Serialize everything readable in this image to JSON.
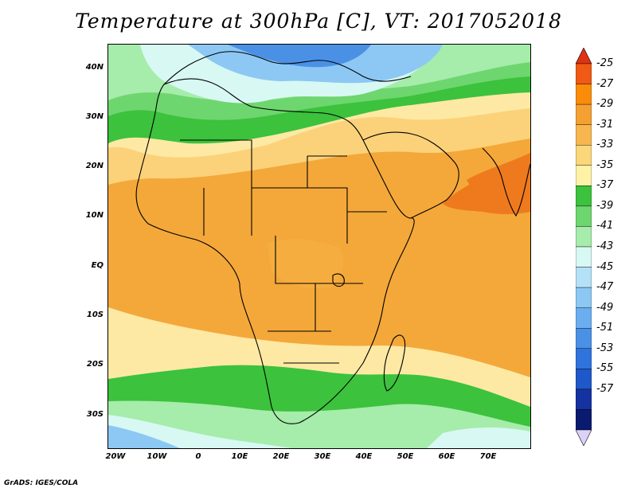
{
  "title": "Temperature at 300hPa [C], VT: 2017052018",
  "credit": "GrADS: IGES/COLA",
  "map": {
    "lat_labels": [
      "40N",
      "30N",
      "20N",
      "10N",
      "EQ",
      "10S",
      "20S",
      "30S"
    ],
    "lon_labels": [
      "20W",
      "10W",
      "0",
      "10E",
      "20E",
      "30E",
      "40E",
      "50E",
      "60E",
      "70E"
    ]
  },
  "colorbar": {
    "labels": [
      "-25",
      "-27",
      "-29",
      "-31",
      "-33",
      "-35",
      "-37",
      "-39",
      "-41",
      "-43",
      "-45",
      "-47",
      "-49",
      "-51",
      "-53",
      "-55",
      "-57"
    ],
    "colors": [
      "#f05a14",
      "#fa8c0a",
      "#f5a032",
      "#f7b74e",
      "#fbd77a",
      "#fdf2a6",
      "#3cc23c",
      "#6ed66e",
      "#a6ecab",
      "#d8f8f4",
      "#b4e1f7",
      "#8cc8f3",
      "#6aaef0",
      "#4a91e6",
      "#2f73dc",
      "#1f58c8",
      "#1432a0",
      "#0a1a6e"
    ],
    "top_arrow_color": "#e03212",
    "bottom_arrow_color": "#dcd2f8"
  },
  "palette": {
    "ocean_tropical": "#f4a83a",
    "warm_core": "#ef7a1e",
    "land_tropical": "#f6ad40",
    "subtropical": "#fbd27a",
    "pale": "#fde9a4",
    "green_dark": "#3cc23c",
    "green_mid": "#6ed66e",
    "green_light": "#a6ecab",
    "cyan_light": "#d8f8f4",
    "blue_light": "#8cc8f3",
    "blue_mid": "#4a91e6"
  }
}
